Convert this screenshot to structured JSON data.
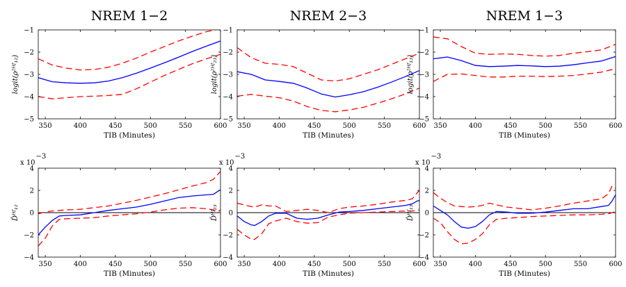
{
  "figure": {
    "x_axis_label": "TIB (Minutes)",
    "exponent_label": "x 10",
    "exponent_power": "−3"
  },
  "chart_data": [
    {
      "type": "line",
      "title": "NREM 1−2",
      "ylabel": "logit(ρ²ᴴᶠ₁₂)",
      "xlabel": "TIB (Minutes)",
      "xlim": [
        340,
        600
      ],
      "ylim": [
        -5,
        -1
      ],
      "x_ticks": [
        "350",
        "400",
        "450",
        "500",
        "550",
        "600"
      ],
      "y_ticks": [
        "−1",
        "−2",
        "−3",
        "−4",
        "−5"
      ],
      "x": [
        340,
        360,
        380,
        400,
        420,
        440,
        460,
        480,
        500,
        520,
        540,
        560,
        580,
        600
      ],
      "series": [
        {
          "name": "estimate",
          "color": "#0000ff",
          "dash": "solid",
          "values": [
            -3.15,
            -3.33,
            -3.38,
            -3.4,
            -3.38,
            -3.3,
            -3.15,
            -2.95,
            -2.72,
            -2.48,
            -2.23,
            -1.97,
            -1.73,
            -1.5
          ]
        },
        {
          "name": "upper",
          "color": "#ff0000",
          "dash": "dash",
          "values": [
            -2.3,
            -2.58,
            -2.72,
            -2.8,
            -2.78,
            -2.68,
            -2.5,
            -2.27,
            -2.0,
            -1.75,
            -1.5,
            -1.28,
            -1.08,
            -0.95
          ]
        },
        {
          "name": "lower",
          "color": "#ff0000",
          "dash": "dash",
          "values": [
            -4.0,
            -4.1,
            -4.05,
            -4.0,
            -3.98,
            -3.95,
            -3.9,
            -3.65,
            -3.35,
            -3.05,
            -2.78,
            -2.52,
            -2.3,
            -2.1
          ]
        }
      ]
    },
    {
      "type": "line",
      "title": "NREM 2−3",
      "ylabel": "logit(ρ²ᴴᶠ₂₃)",
      "xlabel": "TIB (Minutes)",
      "xlim": [
        340,
        600
      ],
      "ylim": [
        -5,
        -1
      ],
      "x_ticks": [
        "350",
        "400",
        "450",
        "500",
        "550",
        "600"
      ],
      "y_ticks": [
        "−1",
        "−2",
        "−3",
        "−4",
        "−5"
      ],
      "x": [
        340,
        360,
        380,
        400,
        420,
        440,
        460,
        480,
        500,
        520,
        540,
        560,
        580,
        600
      ],
      "series": [
        {
          "name": "estimate",
          "color": "#0000ff",
          "dash": "solid",
          "values": [
            -2.88,
            -3.0,
            -3.25,
            -3.32,
            -3.4,
            -3.62,
            -3.88,
            -4.02,
            -3.92,
            -3.78,
            -3.58,
            -3.35,
            -3.1,
            -2.83
          ]
        },
        {
          "name": "upper",
          "color": "#ff0000",
          "dash": "dash",
          "values": [
            -1.8,
            -2.25,
            -2.5,
            -2.55,
            -2.65,
            -2.95,
            -3.25,
            -3.3,
            -3.2,
            -3.0,
            -2.8,
            -2.55,
            -2.3,
            -2.05
          ]
        },
        {
          "name": "lower",
          "color": "#ff0000",
          "dash": "dash",
          "values": [
            -3.98,
            -3.9,
            -3.98,
            -4.05,
            -4.2,
            -4.45,
            -4.62,
            -4.68,
            -4.6,
            -4.48,
            -4.3,
            -4.1,
            -3.88,
            -3.62
          ]
        }
      ]
    },
    {
      "type": "line",
      "title": "NREM 1−3",
      "ylabel": "logit(ρ²ᴴᶠ₁₃)",
      "xlabel": "TIB (Minutes)",
      "xlim": [
        340,
        600
      ],
      "ylim": [
        -5,
        -1
      ],
      "x_ticks": [
        "350",
        "400",
        "450",
        "500",
        "550",
        "600"
      ],
      "y_ticks": [
        "−1",
        "−2",
        "−3",
        "−4",
        "−5"
      ],
      "x": [
        340,
        360,
        380,
        400,
        420,
        440,
        460,
        480,
        500,
        520,
        540,
        560,
        580,
        600
      ],
      "series": [
        {
          "name": "estimate",
          "color": "#0000ff",
          "dash": "solid",
          "values": [
            -2.3,
            -2.22,
            -2.38,
            -2.6,
            -2.65,
            -2.63,
            -2.6,
            -2.62,
            -2.65,
            -2.63,
            -2.57,
            -2.48,
            -2.4,
            -2.2
          ]
        },
        {
          "name": "upper",
          "color": "#ff0000",
          "dash": "dash",
          "values": [
            -1.32,
            -1.4,
            -1.75,
            -2.05,
            -2.1,
            -2.08,
            -2.1,
            -2.15,
            -2.18,
            -2.15,
            -2.05,
            -1.98,
            -1.9,
            -1.65
          ]
        },
        {
          "name": "lower",
          "color": "#ff0000",
          "dash": "dash",
          "values": [
            -3.32,
            -3.0,
            -2.98,
            -3.05,
            -3.12,
            -3.12,
            -3.08,
            -3.08,
            -3.1,
            -3.08,
            -3.05,
            -2.98,
            -2.9,
            -2.75
          ]
        }
      ]
    },
    {
      "type": "line",
      "title": "",
      "ylabel": "D̂ᴴᶠ₁₂",
      "xlabel": "TIB (Minutes)",
      "xlim": [
        340,
        600
      ],
      "ylim": [
        -4,
        4
      ],
      "scale_exponent": -3,
      "x_ticks": [
        "350",
        "400",
        "450",
        "500",
        "550",
        "600"
      ],
      "y_ticks": [
        "4",
        "2",
        "0",
        "−2",
        "−4"
      ],
      "zero_line": true,
      "x": [
        340,
        350,
        360,
        370,
        380,
        400,
        420,
        440,
        460,
        480,
        500,
        520,
        540,
        560,
        580,
        590,
        597,
        600
      ],
      "series": [
        {
          "name": "estimate",
          "color": "#0000ff",
          "dash": "solid",
          "values": [
            -2.0,
            -1.3,
            -0.7,
            -0.3,
            -0.25,
            -0.2,
            0.0,
            0.2,
            0.35,
            0.5,
            0.75,
            1.05,
            1.35,
            1.5,
            1.6,
            1.65,
            1.95,
            2.05
          ]
        },
        {
          "name": "upper",
          "color": "#ff0000",
          "dash": "dash",
          "values": [
            -0.1,
            0.05,
            0.15,
            0.2,
            0.25,
            0.3,
            0.45,
            0.6,
            0.85,
            1.1,
            1.4,
            1.7,
            2.05,
            2.4,
            2.7,
            3.0,
            3.5,
            3.7
          ]
        },
        {
          "name": "lower",
          "color": "#ff0000",
          "dash": "dash",
          "values": [
            -3.0,
            -2.3,
            -1.2,
            -0.6,
            -0.55,
            -0.5,
            -0.45,
            -0.3,
            -0.2,
            -0.1,
            0.05,
            0.25,
            0.4,
            0.45,
            0.35,
            0.25,
            0.1,
            0.25
          ]
        }
      ]
    },
    {
      "type": "line",
      "title": "",
      "ylabel": "D̂ᴴᶠ₂₃",
      "xlabel": "TIB (Minutes)",
      "xlim": [
        340,
        600
      ],
      "ylim": [
        -4,
        4
      ],
      "scale_exponent": -3,
      "x_ticks": [
        "350",
        "400",
        "450",
        "500",
        "550",
        "600"
      ],
      "y_ticks": [
        "4",
        "2",
        "0",
        "−2",
        "−4"
      ],
      "zero_line": true,
      "x": [
        340,
        350,
        360,
        365,
        375,
        385,
        395,
        410,
        425,
        440,
        455,
        470,
        485,
        500,
        520,
        540,
        560,
        580,
        590,
        597,
        600
      ],
      "series": [
        {
          "name": "estimate",
          "color": "#0000ff",
          "dash": "solid",
          "values": [
            -0.3,
            -0.8,
            -1.1,
            -1.15,
            -0.8,
            -0.3,
            -0.05,
            -0.05,
            -0.5,
            -0.6,
            -0.5,
            -0.2,
            0.05,
            0.1,
            0.2,
            0.35,
            0.5,
            0.65,
            0.8,
            1.05,
            1.1
          ]
        },
        {
          "name": "upper",
          "color": "#ff0000",
          "dash": "dash",
          "values": [
            0.85,
            0.7,
            0.55,
            0.5,
            0.7,
            0.6,
            0.6,
            0.1,
            0.2,
            0.3,
            0.2,
            0.0,
            0.35,
            0.5,
            0.6,
            0.75,
            0.95,
            1.1,
            1.25,
            1.8,
            2.0
          ]
        },
        {
          "name": "lower",
          "color": "#ff0000",
          "dash": "dash",
          "values": [
            -1.5,
            -2.0,
            -2.4,
            -2.4,
            -1.9,
            -1.0,
            -0.75,
            -0.5,
            -0.8,
            -0.95,
            -0.9,
            -0.4,
            -0.2,
            -0.05,
            0.0,
            0.05,
            0.1,
            0.15,
            0.15,
            0.2,
            0.25
          ]
        }
      ]
    },
    {
      "type": "line",
      "title": "",
      "ylabel": "D̂ᴴᶠ₁₃",
      "xlabel": "TIB (Minutes)",
      "xlim": [
        340,
        600
      ],
      "ylim": [
        -4,
        4
      ],
      "scale_exponent": -3,
      "x_ticks": [
        "350",
        "400",
        "450",
        "500",
        "550",
        "600"
      ],
      "y_ticks": [
        "4",
        "2",
        "0",
        "−2",
        "−4"
      ],
      "zero_line": true,
      "x": [
        340,
        350,
        360,
        370,
        380,
        390,
        400,
        410,
        420,
        430,
        445,
        460,
        480,
        500,
        520,
        540,
        560,
        580,
        590,
        595,
        600
      ],
      "series": [
        {
          "name": "estimate",
          "color": "#0000ff",
          "dash": "solid",
          "values": [
            0.6,
            0.2,
            -0.2,
            -0.8,
            -1.3,
            -1.4,
            -1.25,
            -0.8,
            -0.2,
            0.1,
            0.05,
            -0.05,
            -0.05,
            0.05,
            0.2,
            0.35,
            0.35,
            0.55,
            0.65,
            1.05,
            1.6
          ]
        },
        {
          "name": "upper",
          "color": "#ff0000",
          "dash": "dash",
          "values": [
            1.8,
            1.3,
            0.9,
            0.6,
            0.55,
            0.5,
            0.55,
            0.65,
            0.85,
            0.7,
            0.5,
            0.4,
            0.25,
            0.4,
            0.6,
            0.85,
            1.05,
            1.25,
            1.7,
            2.4,
            2.2
          ]
        },
        {
          "name": "lower",
          "color": "#ff0000",
          "dash": "dash",
          "values": [
            -0.5,
            -0.9,
            -1.7,
            -2.4,
            -2.8,
            -2.75,
            -2.4,
            -1.9,
            -1.1,
            -0.6,
            -0.5,
            -0.45,
            -0.35,
            -0.3,
            -0.25,
            -0.2,
            -0.2,
            -0.15,
            -0.1,
            0.0,
            0.1
          ]
        }
      ]
    }
  ]
}
